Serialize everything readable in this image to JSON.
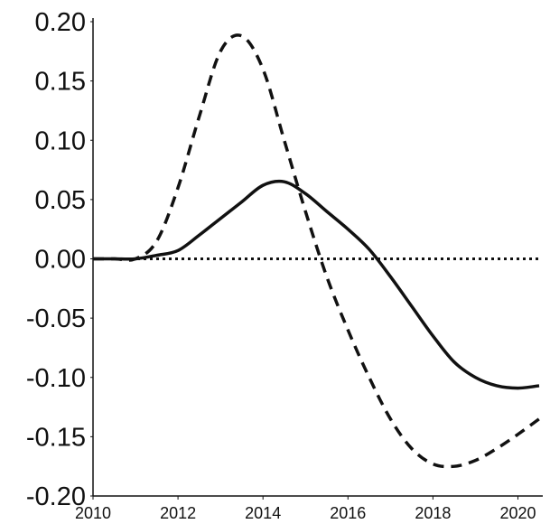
{
  "chart_data": {
    "type": "line",
    "title": "",
    "xlabel": "",
    "ylabel": "",
    "xlim": [
      2010,
      2020.5
    ],
    "ylim": [
      -0.2,
      0.2
    ],
    "grid": false,
    "yticks": [
      0.2,
      0.15,
      0.1,
      0.05,
      0.0,
      -0.05,
      -0.1,
      -0.15,
      -0.2
    ],
    "ytick_labels": [
      "0.20",
      "0.15",
      "0.10",
      "0.05",
      "0.00",
      "-0.05",
      "-0.10",
      "-0.15",
      "-0.20"
    ],
    "xticks": [
      2010,
      2012,
      2014,
      2016,
      2018,
      2020
    ],
    "xtick_labels": [
      "2010",
      "2012",
      "2014",
      "2016",
      "2018",
      "2020"
    ],
    "series": [
      {
        "style": "solid",
        "color": "#111111",
        "x": [
          2010,
          2010.5,
          2011,
          2011.5,
          2012,
          2012.5,
          2013,
          2013.5,
          2014,
          2014.5,
          2015,
          2015.5,
          2016,
          2016.5,
          2017,
          2017.5,
          2018,
          2018.5,
          2019,
          2019.5,
          2020,
          2020.5
        ],
        "y": [
          0.0,
          0.0,
          0.0,
          0.003,
          0.007,
          0.02,
          0.034,
          0.048,
          0.062,
          0.065,
          0.055,
          0.04,
          0.025,
          0.008,
          -0.015,
          -0.04,
          -0.065,
          -0.087,
          -0.1,
          -0.107,
          -0.109,
          -0.107
        ]
      },
      {
        "style": "dashed",
        "color": "#111111",
        "x": [
          2010,
          2010.5,
          2011,
          2011.5,
          2012,
          2012.5,
          2013,
          2013.5,
          2014,
          2014.5,
          2015,
          2015.5,
          2016,
          2016.5,
          2017,
          2017.5,
          2018,
          2018.5,
          2019,
          2019.5,
          2020,
          2020.5
        ],
        "y": [
          0.0,
          0.0,
          0.0,
          0.015,
          0.06,
          0.12,
          0.175,
          0.188,
          0.16,
          0.1,
          0.04,
          -0.015,
          -0.06,
          -0.1,
          -0.135,
          -0.16,
          -0.173,
          -0.175,
          -0.17,
          -0.16,
          -0.148,
          -0.135
        ]
      },
      {
        "style": "dotted",
        "color": "#111111",
        "x": [
          2010,
          2020.5
        ],
        "y": [
          0.0,
          0.0
        ]
      }
    ]
  }
}
